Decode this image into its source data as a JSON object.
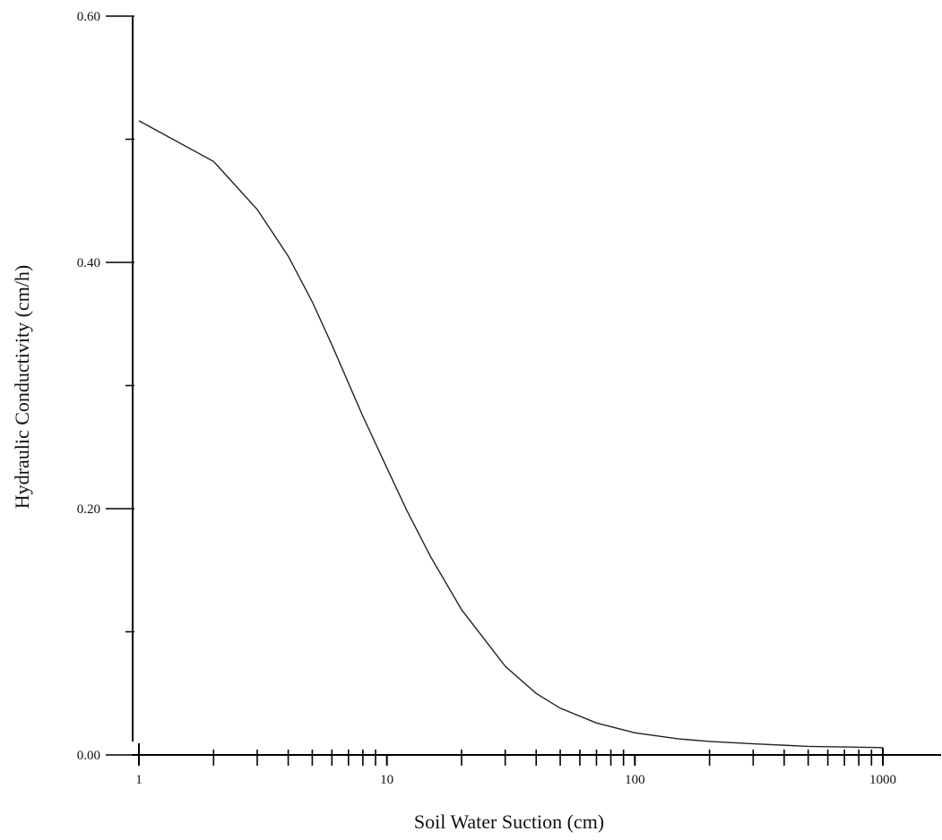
{
  "chart_data": {
    "type": "line",
    "xlabel": "Soil Water Suction (cm)",
    "ylabel": "Hydraulic Conductivity  (cm/h)",
    "x_scale": "log",
    "xlim": [
      1,
      1000
    ],
    "ylim": [
      0,
      0.6
    ],
    "x_ticks": [
      "1",
      "10",
      "100",
      "1000"
    ],
    "y_ticks": [
      "0.00",
      "0.20",
      "0.40",
      "0.60"
    ],
    "grid": false,
    "series": [
      {
        "x": [
          1,
          2,
          3,
          4,
          5,
          6,
          7,
          8,
          10,
          12,
          15,
          20,
          30,
          40,
          50,
          70,
          100,
          150,
          200,
          300,
          500,
          1000
        ],
        "y": [
          0.515,
          0.482,
          0.443,
          0.405,
          0.368,
          0.333,
          0.302,
          0.275,
          0.233,
          0.199,
          0.161,
          0.118,
          0.072,
          0.05,
          0.038,
          0.026,
          0.018,
          0.013,
          0.011,
          0.009,
          0.007,
          0.006
        ]
      }
    ]
  }
}
